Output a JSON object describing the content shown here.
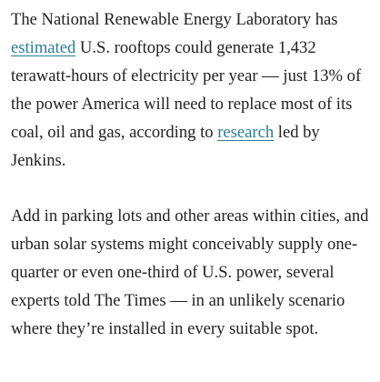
{
  "article": {
    "paragraph_1": {
      "before_link_1": "The National Renewable Energy Laboratory has ",
      "link_1_text": "estimated",
      "between_links": " U.S. rooftops could generate 1,432 terawatt-hours of electricity per year — just 13% of the power America will need to replace most of its coal, oil and gas, according to ",
      "link_2_text": "research",
      "after_link_2": " led by Jenkins."
    },
    "paragraph_2": {
      "text": "Add in parking lots and other areas within cities, and urban solar systems might conceivably supply one-quarter or even one-third of U.S. power, several experts told The Times — in an unlikely scenario where they’re installed in every suitable spot."
    }
  },
  "colors": {
    "text": "#222222",
    "link": "#2a7d94",
    "background": "#ffffff"
  }
}
